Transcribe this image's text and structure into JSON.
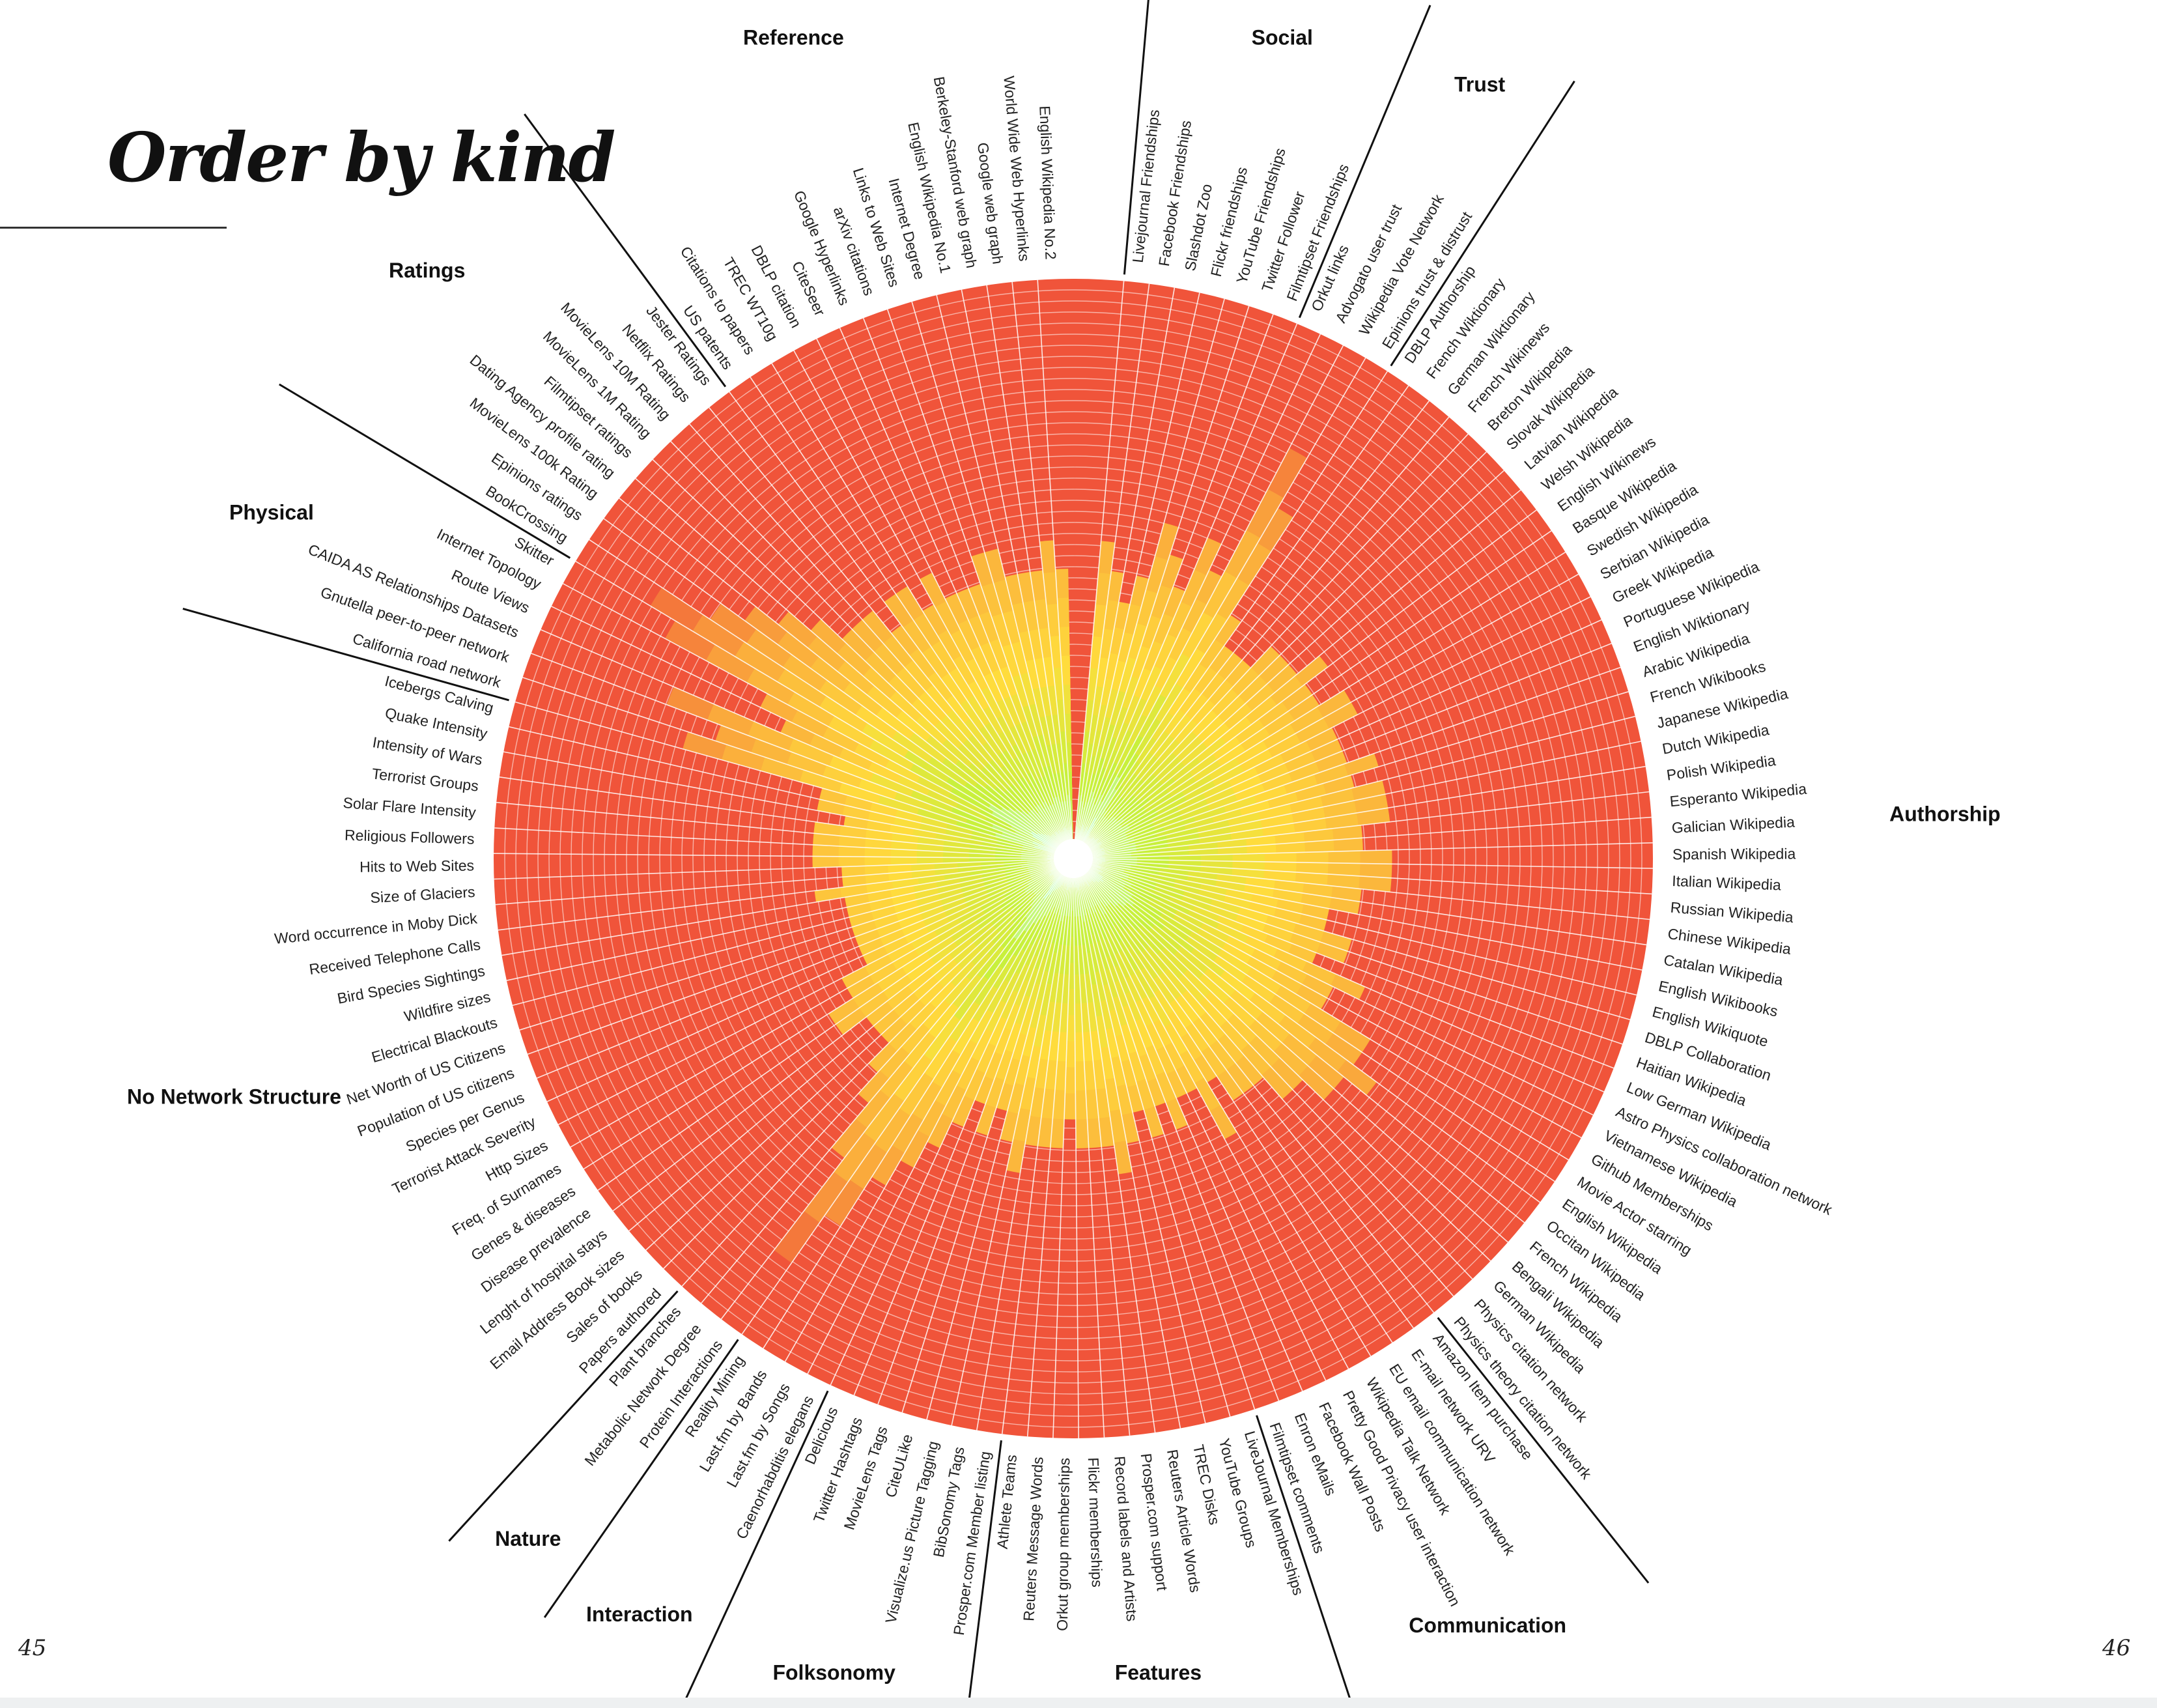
{
  "page": {
    "title": "Order by kind",
    "page_left": "45",
    "page_right": "46"
  },
  "chart_data": {
    "type": "radial",
    "title": "Order by kind",
    "center_value_color": "#ffffff",
    "base_color": "#f0543a",
    "categories": [
      {
        "name": "Social",
        "networks": [
          "Livejournal Friendships",
          "Facebook Friendships",
          "Slashdot Zoo",
          "Flickr friendships",
          "YouTube Friendships",
          "Twitter Follower",
          "Filmtipset Friendships"
        ],
        "intensity": [
          0.55,
          0.5,
          0.45,
          0.5,
          0.6,
          0.55,
          0.5
        ]
      },
      {
        "name": "Trust",
        "networks": [
          "Orkut links",
          "Advogato user trust",
          "Wikipedia Vote Network",
          "Epinions trust & distrust"
        ],
        "intensity": [
          0.6,
          0.55,
          0.8,
          0.7
        ]
      },
      {
        "name": "Authorship",
        "networks": [
          "DBLP Authorship",
          "French Wiktionary",
          "German Wiktionary",
          "French Wikinews",
          "Breton Wikipedia",
          "Slovak Wikipedia",
          "Latvian Wikipedia",
          "Welsh Wikipedia",
          "English Wikinews",
          "Basque Wikipedia",
          "Swedish Wikipedia",
          "Serbian Wikipedia",
          "Greek Wikipedia",
          "Portuguese Wikipedia",
          "English Wiktionary",
          "Arabic Wikipedia",
          "French Wikibooks",
          "Japanese Wikipedia",
          "Dutch Wikipedia",
          "Polish Wikipedia",
          "Esperanto Wikipedia",
          "Galician Wikipedia",
          "Spanish Wikipedia",
          "Italian Wikipedia",
          "Russian Wikipedia",
          "Chinese Wikipedia",
          "Catalan Wikipedia",
          "English Wikibooks",
          "English Wikiquote",
          "DBLP Collaboration",
          "Haitian Wikipedia",
          "Low German Wikipedia",
          "Astro Physics collaboration network",
          "Vietnamese Wikipedia",
          "Github Memberships",
          "Movie Actor starring",
          "English Wikipedia",
          "Occitan Wikipedia",
          "French Wikipedia",
          "Bengali Wikipedia",
          "German Wikipedia",
          "Physics citation network",
          "Physics theory citation network"
        ],
        "intensity": [
          0.5,
          0.45,
          0.45,
          0.45,
          0.5,
          0.5,
          0.5,
          0.55,
          0.5,
          0.5,
          0.55,
          0.55,
          0.5,
          0.5,
          0.5,
          0.55,
          0.5,
          0.55,
          0.55,
          0.55,
          0.5,
          0.5,
          0.55,
          0.55,
          0.55,
          0.5,
          0.5,
          0.45,
          0.45,
          0.5,
          0.5,
          0.45,
          0.55,
          0.5,
          0.5,
          0.6,
          0.6,
          0.65,
          0.6,
          0.6,
          0.55,
          0.55,
          0.5
        ]
      },
      {
        "name": "Communication",
        "networks": [
          "Amazon Item purchase",
          "E-mail network URV",
          "EU email communication network",
          "Wikipedia Talk Network",
          "Pretty Good Privacy user interaction",
          "Facebook Wall Posts",
          "Enron eMails",
          "Filmtipset comments"
        ],
        "intensity": [
          0.5,
          0.5,
          0.45,
          0.55,
          0.45,
          0.45,
          0.5,
          0.45
        ]
      },
      {
        "name": "Features",
        "networks": [
          "LiveJournal Memberships",
          "YouTube Groups",
          "TREC Disks",
          "Reuters Article Words",
          "Prosper.com support",
          "Record labels and Artists",
          "Flickr memberships",
          "Orkut group memberships",
          "Reuters Message Words",
          "Athlete Teams"
        ],
        "intensity": [
          0.5,
          0.45,
          0.5,
          0.55,
          0.5,
          0.5,
          0.5,
          0.45,
          0.5,
          0.5
        ]
      },
      {
        "name": "Folksonomy",
        "networks": [
          "Prosper.com Member listing",
          "BibSonomy Tags",
          "Visualize.us Picture Tagging",
          "CiteULike",
          "MovieLens Tags",
          "Twitter Hashtags",
          "Delicious"
        ],
        "intensity": [
          0.5,
          0.55,
          0.5,
          0.45,
          0.5,
          0.45,
          0.5
        ]
      },
      {
        "name": "Interaction",
        "networks": [
          "Caenorhabditis elegans",
          "Last.fm by Songs",
          "Last.fm by Bands",
          "Reality Mining"
        ],
        "intensity": [
          0.55,
          0.6,
          0.65,
          0.75
        ]
      },
      {
        "name": "Nature",
        "networks": [
          "Protein Interactions",
          "Metabolic Network Degree",
          "Plant branches"
        ],
        "intensity": [
          0.85,
          0.65,
          0.55
        ]
      },
      {
        "name": "No Network Structure",
        "networks": [
          "Papers authored",
          "Sales of books",
          "Email Address Book sizes",
          "Lenght of hospital stays",
          "Disease prevalence",
          "Genes & diseases",
          "Freq. of Surnames",
          "Http Sizes",
          "Terrorist Attack Severity",
          "Species per Genus",
          "Population of US citizens",
          "Net Worth of US Citizens",
          "Electrical Blackouts",
          "Wildfire sizes",
          "Bird Species Sightings",
          "Received Telephone Calls",
          "Word occurrence in Moby Dick",
          "Size of Glaciers",
          "Hits to Web Sites",
          "Religious Followers",
          "Solar Flare Intensity",
          "Terrorist Groups",
          "Intensity of Wars",
          "Quake Intensity",
          "Icebergs Calving"
        ],
        "intensity": [
          0.5,
          0.45,
          0.45,
          0.45,
          0.5,
          0.5,
          0.45,
          0.45,
          0.4,
          0.4,
          0.4,
          0.4,
          0.4,
          0.4,
          0.4,
          0.45,
          0.4,
          0.4,
          0.45,
          0.45,
          0.45,
          0.45,
          0.4,
          0.45,
          0.45
        ]
      },
      {
        "name": "Physical",
        "networks": [
          "California road network",
          "Gnutella peer-to-peer network",
          "CAIDA AS Relationships Datasets",
          "Route Views",
          "Internet Topology",
          "Skitter"
        ],
        "intensity": [
          0.7,
          0.65,
          0.75,
          0.55,
          0.6,
          0.8
        ]
      },
      {
        "name": "Ratings",
        "networks": [
          "BookCrossing",
          "Epinions ratings",
          "MovieLens 100k Rating",
          "Dating Agency profile rating",
          "Filmtipset ratings",
          "MovieLens 1M Rating",
          "MovieLens 10M Rating",
          "Netflix Ratings",
          "Jester Ratings"
        ],
        "intensity": [
          0.85,
          0.75,
          0.7,
          0.65,
          0.6,
          0.55,
          0.55,
          0.55,
          0.5
        ]
      },
      {
        "name": "Reference",
        "networks": [
          "US patents",
          "Citations to papers",
          "TREC WT10g",
          "DBLP citation",
          "CiteSeer",
          "Google Hyperlinks",
          "arXiv citations",
          "Links to Web Sites",
          "Internet Degree",
          "English Wikipedia No.1",
          "Berkeley-Stanford web graph",
          "Google web graph",
          "World Wide Web Hyperlinks",
          "English Wikipedia No.2"
        ],
        "intensity": [
          0.55,
          0.55,
          0.5,
          0.55,
          0.5,
          0.5,
          0.5,
          0.55,
          0.55,
          0.5,
          0.5,
          0.5,
          0.55,
          0.5
        ]
      }
    ]
  }
}
